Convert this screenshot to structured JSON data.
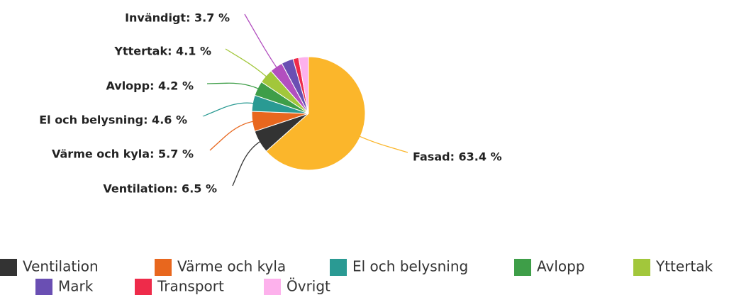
{
  "chart_data": {
    "type": "pie",
    "categories": [
      "Fasad",
      "Ventilation",
      "Värme och kyla",
      "El och belysning",
      "Avlopp",
      "Yttertak",
      "Invändigt",
      "Mark",
      "Transport",
      "Övrigt"
    ],
    "values": [
      63.4,
      6.5,
      5.7,
      4.6,
      4.2,
      4.1,
      3.7,
      3.4,
      1.6,
      2.8
    ],
    "value_labels": [
      "Fasad: 63.4 %",
      "Ventilation: 6.5 %",
      "Värme och kyla: 5.7 %",
      "El och belysning: 4.6 %",
      "Avlopp: 4.2 %",
      "Yttertak: 4.1 %",
      "Invändigt: 3.7 %",
      null,
      null,
      null
    ],
    "colors": [
      "#fbb62b",
      "#333333",
      "#e8671e",
      "#2a9a93",
      "#3e9e48",
      "#a2c73b",
      "#b24fbf",
      "#6a4fb3",
      "#ee2b4a",
      "#fdb1ec"
    ],
    "legend": [
      "Ventilation",
      "Värme och kyla",
      "El och belysning",
      "Avlopp",
      "Yttertak",
      "Mark",
      "Transport",
      "Övrigt"
    ]
  }
}
